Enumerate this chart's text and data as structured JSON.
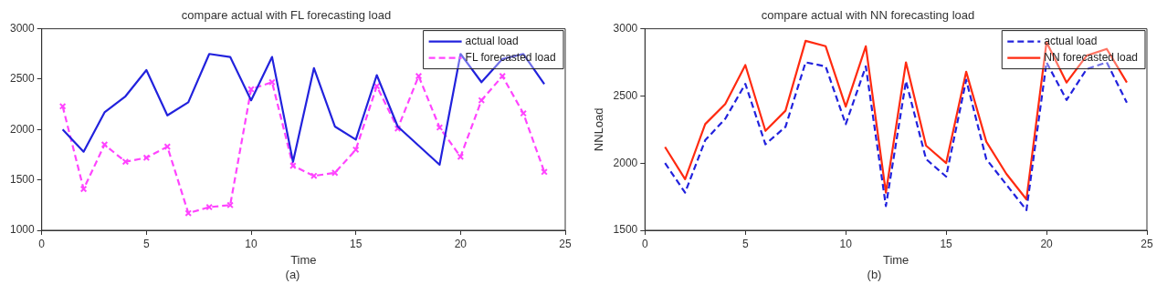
{
  "chart_data": [
    {
      "type": "line",
      "title": "compare actual with FL forecasting load",
      "xlabel": "Time",
      "annotations": [
        "(a)"
      ],
      "x": [
        1,
        2,
        3,
        4,
        5,
        6,
        7,
        8,
        9,
        10,
        11,
        12,
        13,
        14,
        15,
        16,
        17,
        18,
        19,
        20,
        21,
        22,
        23,
        24
      ],
      "xlim": [
        0,
        25
      ],
      "xticks": [
        0,
        5,
        10,
        15,
        20,
        25
      ],
      "ylim": [
        1000,
        3000
      ],
      "yticks": [
        1000,
        1500,
        2000,
        2500,
        3000
      ],
      "grid": false,
      "legend": "top right",
      "series": [
        {
          "name": "actual load",
          "color": "#2222dd",
          "line_style": "solid",
          "marker": "none",
          "values": [
            2000,
            1780,
            2170,
            2330,
            2590,
            2140,
            2270,
            2750,
            2720,
            2290,
            2720,
            1680,
            2610,
            2030,
            1900,
            2540,
            2030,
            1840,
            1650,
            2750,
            2470,
            2700,
            2750,
            2450
          ]
        },
        {
          "name": "FL forecasted load",
          "color": "#ff44ff",
          "line_style": "dashed",
          "marker": "cross",
          "values": [
            2230,
            1410,
            1850,
            1680,
            1720,
            1830,
            1170,
            1230,
            1250,
            2400,
            2470,
            1640,
            1540,
            1570,
            1800,
            2430,
            2010,
            2530,
            2020,
            1730,
            2290,
            2530,
            2160,
            1580
          ]
        }
      ]
    },
    {
      "type": "line",
      "title": "compare actual with NN forecasting load",
      "xlabel": "Time",
      "ylabel": "NNLoad",
      "annotations": [
        "(b)"
      ],
      "x": [
        1,
        2,
        3,
        4,
        5,
        6,
        7,
        8,
        9,
        10,
        11,
        12,
        13,
        14,
        15,
        16,
        17,
        18,
        19,
        20,
        21,
        22,
        23,
        24
      ],
      "xlim": [
        0,
        25
      ],
      "xticks": [
        0,
        5,
        10,
        15,
        20,
        25
      ],
      "ylim": [
        1500,
        3000
      ],
      "yticks": [
        1500,
        2000,
        2500,
        3000
      ],
      "grid": false,
      "legend": "top right",
      "series": [
        {
          "name": "actual load",
          "color": "#2222dd",
          "line_style": "dashed",
          "marker": "none",
          "values": [
            2000,
            1780,
            2170,
            2330,
            2590,
            2140,
            2270,
            2750,
            2720,
            2290,
            2720,
            1680,
            2610,
            2030,
            1900,
            2620,
            2030,
            1840,
            1650,
            2750,
            2470,
            2700,
            2750,
            2450
          ]
        },
        {
          "name": "NN forecasted load",
          "color": "#ff2a10",
          "line_style": "solid",
          "marker": "none",
          "values": [
            2120,
            1880,
            2290,
            2440,
            2730,
            2240,
            2390,
            2910,
            2870,
            2420,
            2870,
            1780,
            2750,
            2130,
            2000,
            2680,
            2160,
            1920,
            1730,
            2900,
            2600,
            2800,
            2850,
            2600
          ]
        }
      ]
    }
  ]
}
